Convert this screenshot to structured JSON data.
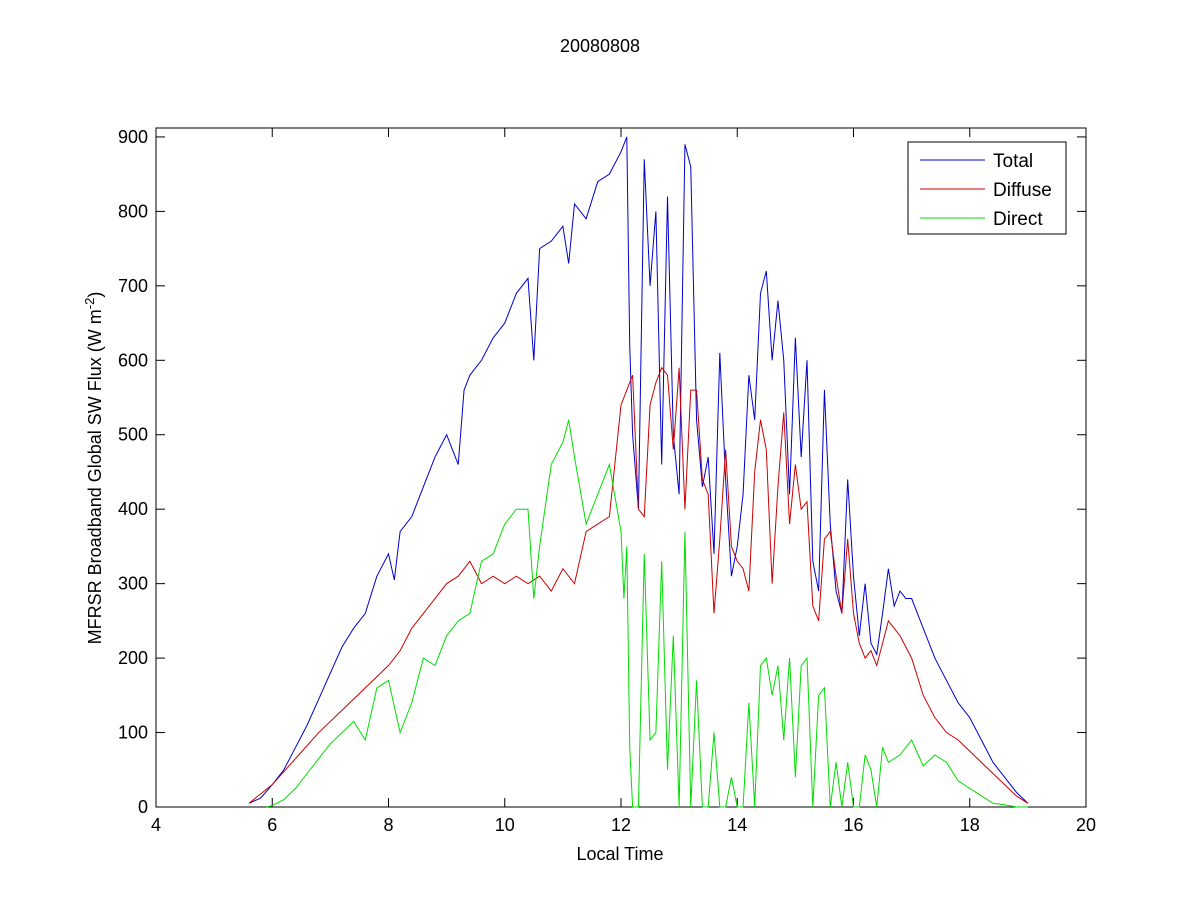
{
  "chart_data": {
    "type": "line",
    "title": "20080808",
    "xlabel": "Local Time",
    "ylabel": "MFRSR Broadband Global SW Flux (W m",
    "ylabel_sup": "-2",
    "ylabel_close": ")",
    "xlim": [
      4,
      20
    ],
    "ylim": [
      0,
      912
    ],
    "xticks": [
      4,
      6,
      8,
      10,
      12,
      14,
      16,
      18,
      20
    ],
    "yticks": [
      0,
      100,
      200,
      300,
      400,
      500,
      600,
      700,
      800,
      900
    ],
    "grid": false,
    "legend_position": "top-right",
    "series": [
      {
        "name": "Total",
        "color": "#0000cc",
        "points": [
          [
            5.6,
            5
          ],
          [
            5.8,
            12
          ],
          [
            6.0,
            30
          ],
          [
            6.2,
            50
          ],
          [
            6.4,
            80
          ],
          [
            6.6,
            110
          ],
          [
            6.8,
            145
          ],
          [
            7.0,
            180
          ],
          [
            7.2,
            215
          ],
          [
            7.4,
            240
          ],
          [
            7.6,
            260
          ],
          [
            7.8,
            310
          ],
          [
            8.0,
            340
          ],
          [
            8.1,
            305
          ],
          [
            8.2,
            370
          ],
          [
            8.4,
            390
          ],
          [
            8.6,
            430
          ],
          [
            8.8,
            470
          ],
          [
            9.0,
            500
          ],
          [
            9.2,
            460
          ],
          [
            9.3,
            560
          ],
          [
            9.4,
            580
          ],
          [
            9.6,
            600
          ],
          [
            9.8,
            630
          ],
          [
            10.0,
            650
          ],
          [
            10.2,
            690
          ],
          [
            10.4,
            710
          ],
          [
            10.5,
            600
          ],
          [
            10.6,
            750
          ],
          [
            10.8,
            760
          ],
          [
            11.0,
            780
          ],
          [
            11.1,
            730
          ],
          [
            11.2,
            810
          ],
          [
            11.4,
            790
          ],
          [
            11.6,
            840
          ],
          [
            11.8,
            850
          ],
          [
            12.0,
            880
          ],
          [
            12.1,
            900
          ],
          [
            12.15,
            620
          ],
          [
            12.2,
            500
          ],
          [
            12.3,
            400
          ],
          [
            12.4,
            870
          ],
          [
            12.5,
            700
          ],
          [
            12.6,
            800
          ],
          [
            12.7,
            460
          ],
          [
            12.8,
            820
          ],
          [
            12.9,
            500
          ],
          [
            13.0,
            420
          ],
          [
            13.1,
            890
          ],
          [
            13.2,
            860
          ],
          [
            13.3,
            520
          ],
          [
            13.4,
            430
          ],
          [
            13.5,
            470
          ],
          [
            13.6,
            340
          ],
          [
            13.7,
            610
          ],
          [
            13.8,
            440
          ],
          [
            13.9,
            310
          ],
          [
            14.0,
            350
          ],
          [
            14.1,
            420
          ],
          [
            14.2,
            580
          ],
          [
            14.3,
            520
          ],
          [
            14.4,
            690
          ],
          [
            14.5,
            720
          ],
          [
            14.6,
            600
          ],
          [
            14.7,
            680
          ],
          [
            14.8,
            600
          ],
          [
            14.9,
            420
          ],
          [
            15.0,
            630
          ],
          [
            15.1,
            470
          ],
          [
            15.2,
            600
          ],
          [
            15.3,
            330
          ],
          [
            15.4,
            290
          ],
          [
            15.5,
            560
          ],
          [
            15.6,
            380
          ],
          [
            15.7,
            290
          ],
          [
            15.8,
            260
          ],
          [
            15.9,
            440
          ],
          [
            16.0,
            310
          ],
          [
            16.1,
            230
          ],
          [
            16.2,
            300
          ],
          [
            16.3,
            220
          ],
          [
            16.4,
            205
          ],
          [
            16.5,
            260
          ],
          [
            16.6,
            320
          ],
          [
            16.7,
            270
          ],
          [
            16.8,
            290
          ],
          [
            16.9,
            280
          ],
          [
            17.0,
            280
          ],
          [
            17.2,
            240
          ],
          [
            17.4,
            200
          ],
          [
            17.6,
            170
          ],
          [
            17.8,
            140
          ],
          [
            18.0,
            120
          ],
          [
            18.2,
            90
          ],
          [
            18.4,
            60
          ],
          [
            18.6,
            40
          ],
          [
            18.8,
            20
          ],
          [
            19.0,
            5
          ]
        ]
      },
      {
        "name": "Diffuse",
        "color": "#cc0000",
        "points": [
          [
            5.6,
            5
          ],
          [
            6.0,
            30
          ],
          [
            6.4,
            65
          ],
          [
            6.8,
            100
          ],
          [
            7.2,
            130
          ],
          [
            7.6,
            160
          ],
          [
            8.0,
            190
          ],
          [
            8.2,
            210
          ],
          [
            8.4,
            240
          ],
          [
            8.6,
            260
          ],
          [
            8.8,
            280
          ],
          [
            9.0,
            300
          ],
          [
            9.2,
            310
          ],
          [
            9.4,
            330
          ],
          [
            9.6,
            300
          ],
          [
            9.8,
            310
          ],
          [
            10.0,
            300
          ],
          [
            10.2,
            310
          ],
          [
            10.4,
            300
          ],
          [
            10.6,
            310
          ],
          [
            10.8,
            290
          ],
          [
            11.0,
            320
          ],
          [
            11.2,
            300
          ],
          [
            11.4,
            370
          ],
          [
            11.6,
            380
          ],
          [
            11.8,
            390
          ],
          [
            12.0,
            540
          ],
          [
            12.1,
            560
          ],
          [
            12.2,
            580
          ],
          [
            12.3,
            400
          ],
          [
            12.4,
            390
          ],
          [
            12.5,
            540
          ],
          [
            12.6,
            570
          ],
          [
            12.7,
            590
          ],
          [
            12.8,
            580
          ],
          [
            12.9,
            480
          ],
          [
            13.0,
            590
          ],
          [
            13.1,
            400
          ],
          [
            13.2,
            560
          ],
          [
            13.3,
            560
          ],
          [
            13.4,
            440
          ],
          [
            13.5,
            420
          ],
          [
            13.6,
            260
          ],
          [
            13.7,
            360
          ],
          [
            13.8,
            480
          ],
          [
            13.9,
            350
          ],
          [
            14.0,
            330
          ],
          [
            14.1,
            320
          ],
          [
            14.2,
            290
          ],
          [
            14.3,
            450
          ],
          [
            14.4,
            520
          ],
          [
            14.5,
            480
          ],
          [
            14.6,
            300
          ],
          [
            14.7,
            430
          ],
          [
            14.8,
            530
          ],
          [
            14.9,
            380
          ],
          [
            15.0,
            460
          ],
          [
            15.1,
            400
          ],
          [
            15.2,
            410
          ],
          [
            15.3,
            270
          ],
          [
            15.4,
            250
          ],
          [
            15.5,
            360
          ],
          [
            15.6,
            370
          ],
          [
            15.7,
            310
          ],
          [
            15.8,
            260
          ],
          [
            15.9,
            360
          ],
          [
            16.0,
            260
          ],
          [
            16.1,
            220
          ],
          [
            16.2,
            200
          ],
          [
            16.3,
            210
          ],
          [
            16.4,
            190
          ],
          [
            16.5,
            220
          ],
          [
            16.6,
            250
          ],
          [
            16.8,
            230
          ],
          [
            17.0,
            200
          ],
          [
            17.2,
            150
          ],
          [
            17.4,
            120
          ],
          [
            17.6,
            100
          ],
          [
            17.8,
            90
          ],
          [
            18.0,
            75
          ],
          [
            18.2,
            60
          ],
          [
            18.4,
            45
          ],
          [
            18.6,
            30
          ],
          [
            18.8,
            15
          ],
          [
            19.0,
            5
          ]
        ]
      },
      {
        "name": "Direct",
        "color": "#00dd00",
        "points": [
          [
            5.9,
            0
          ],
          [
            6.0,
            2
          ],
          [
            6.2,
            10
          ],
          [
            6.4,
            25
          ],
          [
            6.6,
            45
          ],
          [
            6.8,
            65
          ],
          [
            7.0,
            85
          ],
          [
            7.2,
            100
          ],
          [
            7.4,
            115
          ],
          [
            7.6,
            90
          ],
          [
            7.8,
            160
          ],
          [
            8.0,
            170
          ],
          [
            8.2,
            100
          ],
          [
            8.4,
            140
          ],
          [
            8.6,
            200
          ],
          [
            8.8,
            190
          ],
          [
            9.0,
            230
          ],
          [
            9.2,
            250
          ],
          [
            9.4,
            260
          ],
          [
            9.6,
            330
          ],
          [
            9.8,
            340
          ],
          [
            10.0,
            380
          ],
          [
            10.2,
            400
          ],
          [
            10.4,
            400
          ],
          [
            10.5,
            280
          ],
          [
            10.6,
            350
          ],
          [
            10.8,
            460
          ],
          [
            11.0,
            490
          ],
          [
            11.1,
            520
          ],
          [
            11.2,
            470
          ],
          [
            11.4,
            380
          ],
          [
            11.6,
            420
          ],
          [
            11.8,
            460
          ],
          [
            12.0,
            370
          ],
          [
            12.05,
            280
          ],
          [
            12.1,
            350
          ],
          [
            12.15,
            80
          ],
          [
            12.2,
            0
          ],
          [
            12.3,
            0
          ],
          [
            12.4,
            340
          ],
          [
            12.5,
            90
          ],
          [
            12.6,
            100
          ],
          [
            12.7,
            330
          ],
          [
            12.8,
            50
          ],
          [
            12.9,
            230
          ],
          [
            13.0,
            0
          ],
          [
            13.1,
            370
          ],
          [
            13.2,
            0
          ],
          [
            13.3,
            170
          ],
          [
            13.4,
            0
          ],
          [
            13.5,
            0
          ],
          [
            13.6,
            100
          ],
          [
            13.7,
            0
          ],
          [
            13.8,
            0
          ],
          [
            13.9,
            40
          ],
          [
            14.0,
            0
          ],
          [
            14.1,
            0
          ],
          [
            14.2,
            140
          ],
          [
            14.3,
            0
          ],
          [
            14.4,
            190
          ],
          [
            14.5,
            200
          ],
          [
            14.6,
            150
          ],
          [
            14.7,
            190
          ],
          [
            14.8,
            90
          ],
          [
            14.9,
            200
          ],
          [
            15.0,
            40
          ],
          [
            15.1,
            190
          ],
          [
            15.2,
            200
          ],
          [
            15.3,
            0
          ],
          [
            15.4,
            150
          ],
          [
            15.5,
            160
          ],
          [
            15.6,
            0
          ],
          [
            15.7,
            60
          ],
          [
            15.8,
            0
          ],
          [
            15.9,
            60
          ],
          [
            16.0,
            0
          ],
          [
            16.1,
            0
          ],
          [
            16.2,
            70
          ],
          [
            16.3,
            50
          ],
          [
            16.4,
            0
          ],
          [
            16.5,
            80
          ],
          [
            16.6,
            60
          ],
          [
            16.8,
            70
          ],
          [
            17.0,
            90
          ],
          [
            17.2,
            55
          ],
          [
            17.4,
            70
          ],
          [
            17.6,
            60
          ],
          [
            17.8,
            35
          ],
          [
            18.0,
            25
          ],
          [
            18.2,
            15
          ],
          [
            18.4,
            5
          ],
          [
            18.6,
            3
          ],
          [
            18.8,
            0
          ],
          [
            19.0,
            0
          ]
        ]
      }
    ]
  }
}
